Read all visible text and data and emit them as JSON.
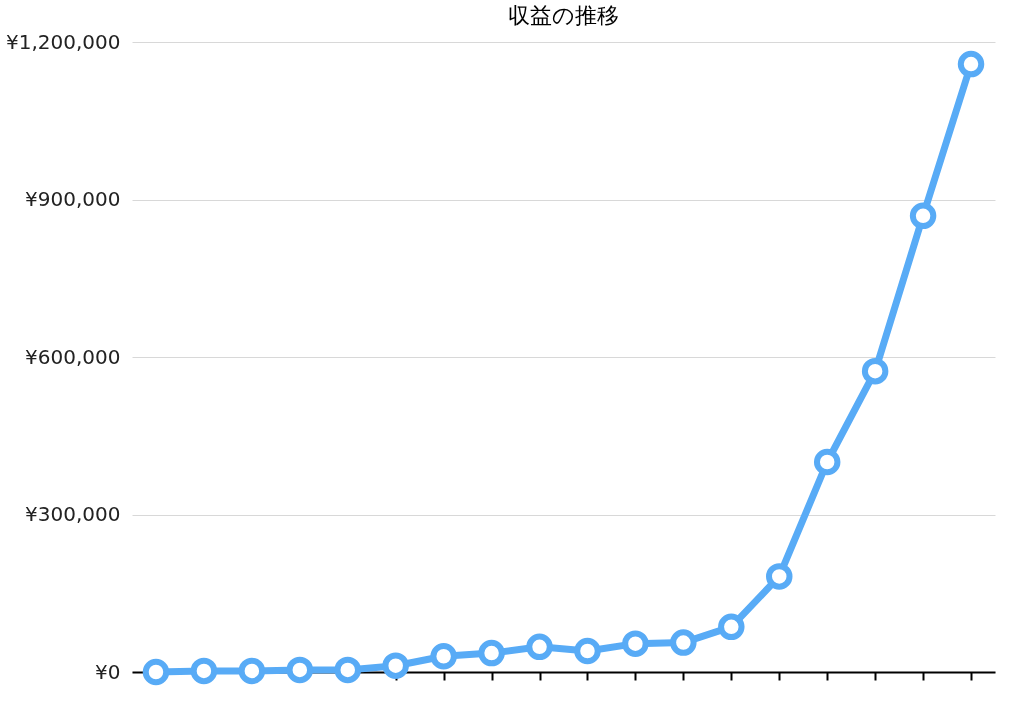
{
  "chart_data": {
    "type": "line",
    "title": "収益の推移",
    "categories": [
      null,
      null,
      null,
      null,
      null,
      null,
      null,
      null,
      null,
      null,
      null,
      null,
      null,
      null,
      null,
      null,
      null,
      null
    ],
    "series": [
      {
        "color": "#58abf6",
        "values": [
          0,
          2000,
          2000,
          4000,
          4000,
          12000,
          30000,
          36000,
          48000,
          40000,
          54000,
          56000,
          86000,
          182000,
          400000,
          573000,
          869000,
          1158000
        ]
      }
    ],
    "ylim": [
      0,
      1200000
    ],
    "yticks": [
      {
        "value": 0,
        "label": "¥0"
      },
      {
        "value": 300000,
        "label": "¥300,000"
      },
      {
        "value": 600000,
        "label": "¥600,000"
      },
      {
        "value": 900000,
        "label": "¥900,000"
      },
      {
        "value": 1200000,
        "label": "¥1,200,000"
      }
    ],
    "grid": "y",
    "marker": "circle",
    "line_style": "solid",
    "tick_labels": "y"
  }
}
